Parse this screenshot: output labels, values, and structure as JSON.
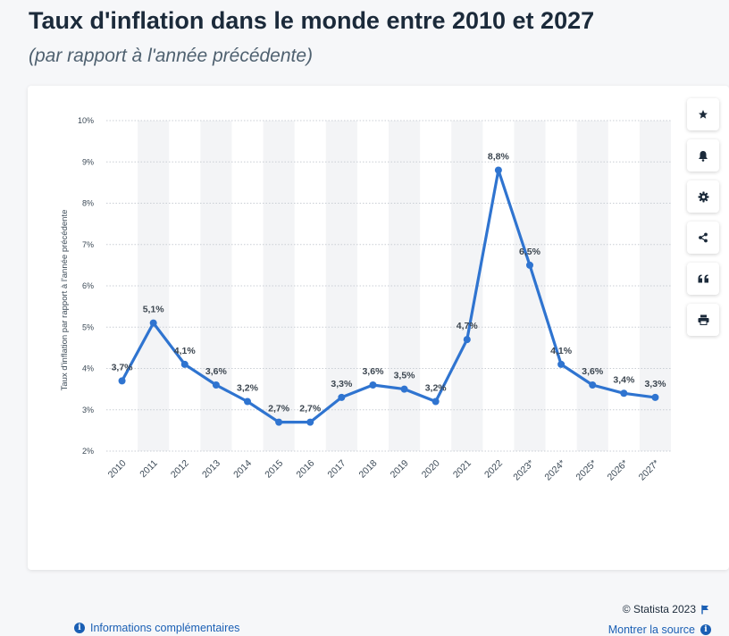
{
  "header": {
    "title": "Taux d'inflation dans le monde entre 2010 et 2027",
    "subtitle": "(par rapport à l'année précédente)"
  },
  "chart_data": {
    "type": "line",
    "ylabel": "Taux d'inflation par rapport à l'année précédente",
    "xlabel": "",
    "ylim": [
      2,
      10
    ],
    "y_ticks": [
      2,
      3,
      4,
      5,
      6,
      7,
      8,
      9,
      10
    ],
    "y_tick_labels": [
      "2%",
      "3%",
      "4%",
      "5%",
      "6%",
      "7%",
      "8%",
      "9%",
      "10%"
    ],
    "grid": true,
    "categories": [
      "2010",
      "2011",
      "2012",
      "2013",
      "2014",
      "2015",
      "2016",
      "2017",
      "2018",
      "2019",
      "2020",
      "2021",
      "2022",
      "2023*",
      "2024*",
      "2025*",
      "2026*",
      "2027*"
    ],
    "values": [
      3.7,
      5.1,
      4.1,
      3.6,
      3.2,
      2.7,
      2.7,
      3.3,
      3.6,
      3.5,
      3.2,
      4.7,
      8.8,
      6.5,
      4.1,
      3.6,
      3.4,
      3.3
    ],
    "data_labels": [
      "3,7%",
      "5,1%",
      "4,1%",
      "3,6%",
      "3,2%",
      "2,7%",
      "2,7%",
      "3,3%",
      "3,6%",
      "3,5%",
      "3,2%",
      "4,7%",
      "8,8%",
      "6,5%",
      "4,1%",
      "3,6%",
      "3,4%",
      "3,3%"
    ],
    "colors": {
      "line": "#2f74d0",
      "band": "#f3f4f6",
      "grid": "#c9ced4"
    }
  },
  "toolbar": {
    "buttons": [
      {
        "name": "favorite",
        "icon": "star-icon"
      },
      {
        "name": "notification",
        "icon": "bell-icon"
      },
      {
        "name": "settings",
        "icon": "gear-icon"
      },
      {
        "name": "share",
        "icon": "share-icon"
      },
      {
        "name": "cite",
        "icon": "quote-icon"
      },
      {
        "name": "print",
        "icon": "print-icon"
      }
    ]
  },
  "footer": {
    "copyright": "© Statista 2023",
    "info_link": "Informations complémentaires",
    "source_link": "Montrer la source"
  }
}
